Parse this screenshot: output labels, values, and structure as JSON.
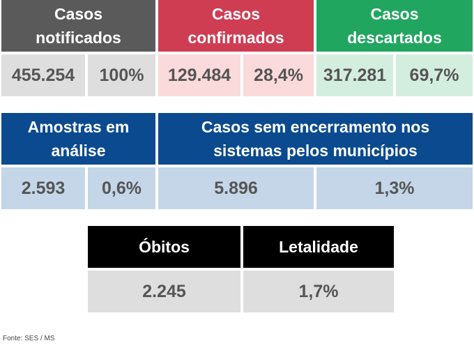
{
  "row1": {
    "notificados": {
      "label_line1": "Casos",
      "label_line2": "notificados",
      "value": "455.254",
      "percent": "100%"
    },
    "confirmados": {
      "label_line1": "Casos",
      "label_line2": "confirmados",
      "value": "129.484",
      "percent": "28,4%"
    },
    "descartados": {
      "label_line1": "Casos",
      "label_line2": "descartados",
      "value": "317.281",
      "percent": "69,7%"
    }
  },
  "row2": {
    "amostras": {
      "label_line1": "Amostras em",
      "label_line2": "análise",
      "value": "2.593",
      "percent": "0,6%"
    },
    "sem_encerramento": {
      "label_line1": "Casos sem encerramento nos",
      "label_line2": "sistemas pelos municípios",
      "value": "5.896",
      "percent": "1,3%"
    }
  },
  "row3": {
    "obitos": {
      "label": "Óbitos",
      "value": "2.245"
    },
    "letalidade": {
      "label": "Letalidade",
      "value": "1,7%"
    }
  },
  "source": "Fonte: SES / MS",
  "colors": {
    "notificados_header": "#5a5a5a",
    "confirmados_header": "#cf3d52",
    "descartados_header": "#21a65f",
    "blue_header": "#0b4a8f",
    "black_header": "#000000"
  }
}
